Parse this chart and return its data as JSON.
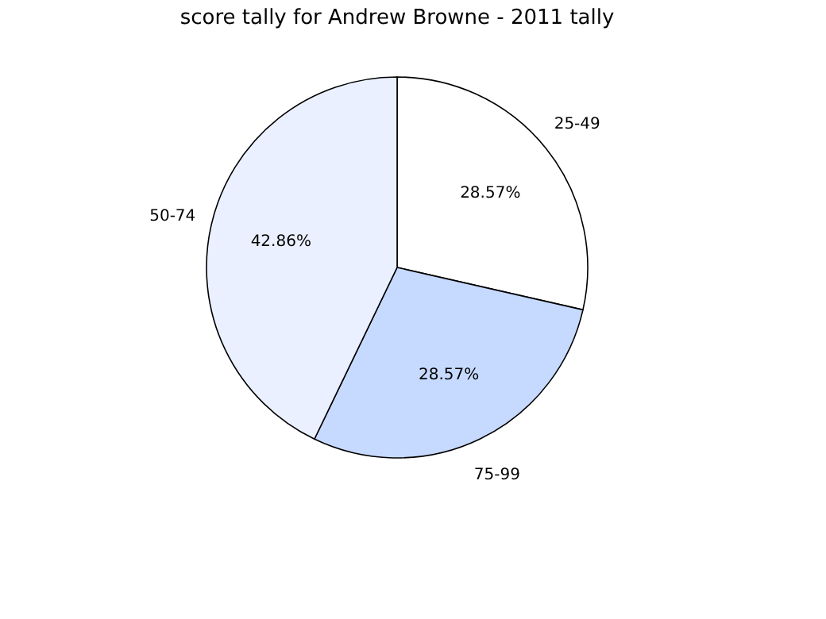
{
  "chart_data": {
    "type": "pie",
    "title": "score tally for Andrew Browne - 2011 tally",
    "categories": [
      "25-49",
      "75-99",
      "50-74"
    ],
    "values": [
      28.57,
      28.57,
      42.86
    ],
    "value_labels": [
      "28.57%",
      "28.57%",
      "42.86%"
    ],
    "colors": [
      "#ffffff",
      "#c6d9ff",
      "#eaf0ff"
    ],
    "legend": false
  }
}
